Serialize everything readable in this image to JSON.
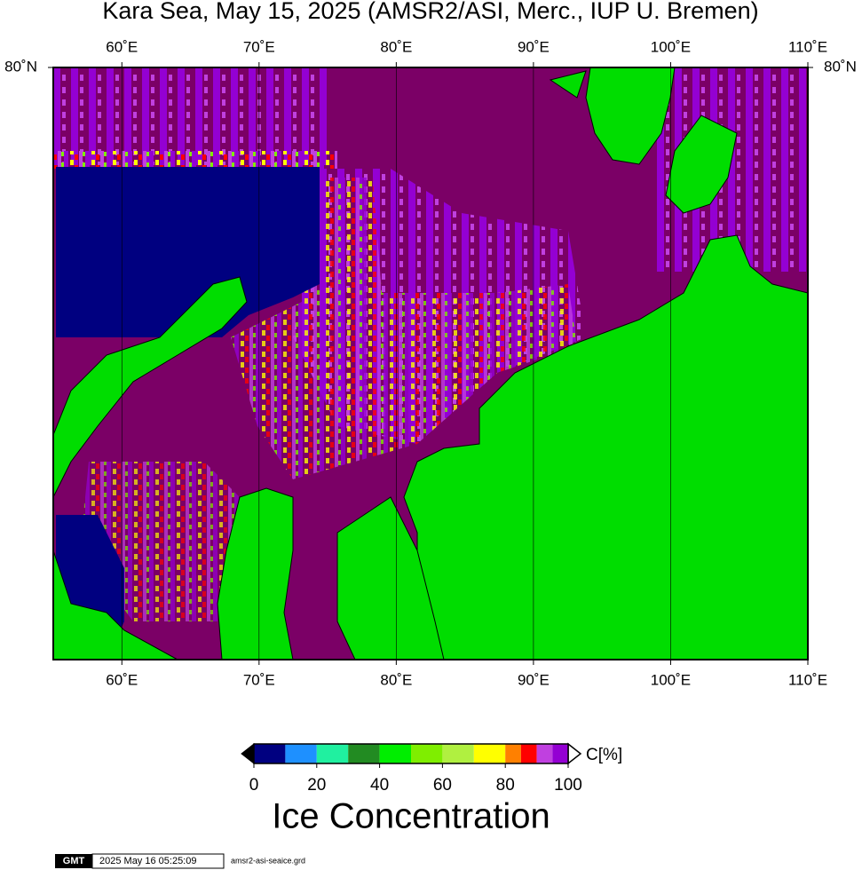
{
  "title": "Kara Sea, May 15, 2025 (AMSR2/ASI, Merc., IUP U. Bremen)",
  "map": {
    "xlim": [
      55,
      110
    ],
    "xticks": [
      {
        "value": 60,
        "label": "60˚E"
      },
      {
        "value": 70,
        "label": "70˚E"
      },
      {
        "value": 80,
        "label": "80˚E"
      },
      {
        "value": 90,
        "label": "90˚E"
      },
      {
        "value": 100,
        "label": "100˚E"
      },
      {
        "value": 110,
        "label": "110˚E"
      }
    ],
    "ylim": [
      68,
      80
    ],
    "yticks": [
      {
        "value": 80,
        "label": "80˚N"
      }
    ]
  },
  "colorbar": {
    "unit": "C[%]",
    "title": "Ice Concentration",
    "bins": [
      0,
      10,
      20,
      30,
      40,
      50,
      60,
      70,
      80,
      85,
      90,
      95,
      100
    ],
    "colors": [
      "#000080",
      "#1e90ff",
      "#20f0a0",
      "#228b22",
      "#00ee00",
      "#7fee00",
      "#b0f040",
      "#ffff00",
      "#ff8000",
      "#ff0000",
      "#c040e0",
      "#9400d3"
    ],
    "ticks": [
      0,
      20,
      40,
      60,
      80,
      100
    ]
  },
  "footer": {
    "logo": "GMT",
    "timestamp": "2025 May 16 05:25:09",
    "file": "amsr2-asi-seaice.grd"
  }
}
